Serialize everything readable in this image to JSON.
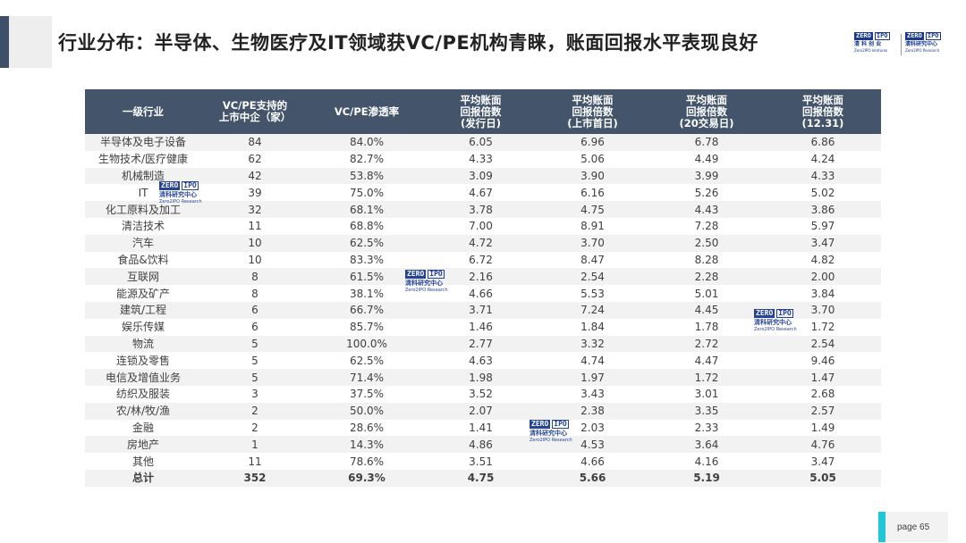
{
  "header": {
    "title": "行业分布：半导体、生物医疗及IT领域获VC/PE机构青睐，账面回报水平表现良好"
  },
  "logo": {
    "zero": "ZERO",
    "ipo": "IPO",
    "left_cn": "清 科 创 业",
    "left_en": "Zero2IPO Ventures",
    "right_cn": "清科研究中心",
    "right_en": "Zero2IPO Research"
  },
  "table": {
    "headers": [
      [
        "一级行业"
      ],
      [
        "VC/PE支持的",
        "上市中企（家）"
      ],
      [
        "VC/PE渗透率"
      ],
      [
        "平均账面",
        "回报倍数",
        "(发行日)"
      ],
      [
        "平均账面",
        "回报倍数",
        "(上市首日)"
      ],
      [
        "平均账面",
        "回报倍数",
        "(20交易日)"
      ],
      [
        "平均账面",
        "回报倍数",
        "(12.31)"
      ]
    ],
    "rows": [
      [
        "半导体及电子设备",
        "84",
        "84.0%",
        "6.05",
        "6.96",
        "6.78",
        "6.86"
      ],
      [
        "生物技术/医疗健康",
        "62",
        "82.7%",
        "4.33",
        "5.06",
        "4.49",
        "4.24"
      ],
      [
        "机械制造",
        "42",
        "53.8%",
        "3.09",
        "3.90",
        "3.99",
        "4.33"
      ],
      [
        "IT",
        "39",
        "75.0%",
        "4.67",
        "6.16",
        "5.26",
        "5.02"
      ],
      [
        "化工原料及加工",
        "32",
        "68.1%",
        "3.78",
        "4.75",
        "4.43",
        "3.86"
      ],
      [
        "清洁技术",
        "11",
        "68.8%",
        "7.00",
        "8.91",
        "7.28",
        "5.97"
      ],
      [
        "汽车",
        "10",
        "62.5%",
        "4.72",
        "3.70",
        "2.50",
        "3.47"
      ],
      [
        "食品&饮料",
        "10",
        "83.3%",
        "6.72",
        "8.47",
        "8.28",
        "4.82"
      ],
      [
        "互联网",
        "8",
        "61.5%",
        "2.16",
        "2.54",
        "2.28",
        "2.00"
      ],
      [
        "能源及矿产",
        "8",
        "38.1%",
        "4.66",
        "5.53",
        "5.01",
        "3.84"
      ],
      [
        "建筑/工程",
        "6",
        "66.7%",
        "3.71",
        "7.24",
        "4.45",
        "3.70"
      ],
      [
        "娱乐传媒",
        "6",
        "85.7%",
        "1.46",
        "1.84",
        "1.78",
        "1.72"
      ],
      [
        "物流",
        "5",
        "100.0%",
        "2.77",
        "3.32",
        "2.72",
        "2.54"
      ],
      [
        "连锁及零售",
        "5",
        "62.5%",
        "4.63",
        "4.74",
        "4.47",
        "9.46"
      ],
      [
        "电信及增值业务",
        "5",
        "71.4%",
        "1.98",
        "1.97",
        "1.72",
        "1.47"
      ],
      [
        "纺织及服装",
        "3",
        "37.5%",
        "3.52",
        "3.43",
        "3.01",
        "2.68"
      ],
      [
        "农/林/牧/渔",
        "2",
        "50.0%",
        "2.07",
        "2.38",
        "3.35",
        "2.57"
      ],
      [
        "金融",
        "2",
        "28.6%",
        "1.41",
        "2.03",
        "2.33",
        "1.49"
      ],
      [
        "房地产",
        "1",
        "14.3%",
        "4.86",
        "4.53",
        "3.64",
        "4.76"
      ],
      [
        "其他",
        "11",
        "78.6%",
        "3.51",
        "4.66",
        "4.16",
        "3.47"
      ]
    ],
    "total": [
      "总计",
      "352",
      "69.3%",
      "4.75",
      "5.66",
      "5.19",
      "5.05"
    ]
  },
  "footer": {
    "page_label": "page  65"
  },
  "colors": {
    "header_bg": "#44546a",
    "stripe": "#f2f2f2",
    "accent_bar": "#1fc8d6",
    "brand_blue": "#1b3a8f"
  }
}
